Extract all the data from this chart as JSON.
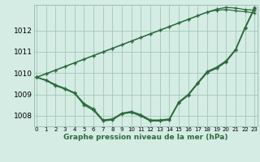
{
  "title": "Graphe pression niveau de la mer (hPa)",
  "xlabel_ticks": [
    "0",
    "1",
    "2",
    "3",
    "4",
    "5",
    "6",
    "7",
    "8",
    "9",
    "10",
    "11",
    "12",
    "13",
    "14",
    "15",
    "16",
    "17",
    "18",
    "19",
    "20",
    "21",
    "22",
    "23"
  ],
  "yticks": [
    1008,
    1009,
    1010,
    1011,
    1012
  ],
  "ylim": [
    1007.5,
    1013.2
  ],
  "xlim": [
    -0.3,
    23.3
  ],
  "bg_color": "#d4ece4",
  "grid_color": "#9bbfb0",
  "line_color": "#2d6b3c",
  "series_curved": [
    [
      1009.8,
      1009.65,
      1009.45,
      1009.25,
      1009.05,
      1008.55,
      1008.3,
      1007.78,
      1007.82,
      1008.1,
      1008.18,
      1008.02,
      1007.78,
      1007.78,
      1007.82,
      1008.62,
      1008.98,
      1009.52,
      1010.05,
      1010.25,
      1010.55,
      1011.1,
      1012.12,
      1013.05
    ],
    [
      1009.8,
      1009.65,
      1009.4,
      1009.25,
      1009.05,
      1008.5,
      1008.25,
      1007.75,
      1007.8,
      1008.08,
      1008.15,
      1007.98,
      1007.75,
      1007.75,
      1007.8,
      1008.6,
      1008.95,
      1009.5,
      1010.02,
      1010.22,
      1010.52,
      1011.08,
      1012.1,
      1013.02
    ],
    [
      1009.8,
      1009.68,
      1009.45,
      1009.28,
      1009.08,
      1008.58,
      1008.32,
      1007.8,
      1007.85,
      1008.12,
      1008.2,
      1008.05,
      1007.8,
      1007.8,
      1007.85,
      1008.65,
      1009.0,
      1009.55,
      1010.08,
      1010.28,
      1010.58,
      1011.12,
      1012.15,
      1013.08
    ]
  ],
  "series_straight": [
    [
      1009.8,
      1009.97,
      1010.14,
      1010.31,
      1010.48,
      1010.65,
      1010.82,
      1010.99,
      1011.16,
      1011.33,
      1011.5,
      1011.67,
      1011.84,
      1012.01,
      1012.18,
      1012.35,
      1012.52,
      1012.69,
      1012.86,
      1012.95,
      1012.98,
      1012.92,
      1012.88,
      1012.82
    ],
    [
      1009.8,
      1009.97,
      1010.14,
      1010.31,
      1010.48,
      1010.65,
      1010.82,
      1010.99,
      1011.16,
      1011.33,
      1011.5,
      1011.67,
      1011.84,
      1012.01,
      1012.18,
      1012.35,
      1012.52,
      1012.69,
      1012.86,
      1013.0,
      1013.08,
      1013.05,
      1012.98,
      1012.95
    ]
  ]
}
